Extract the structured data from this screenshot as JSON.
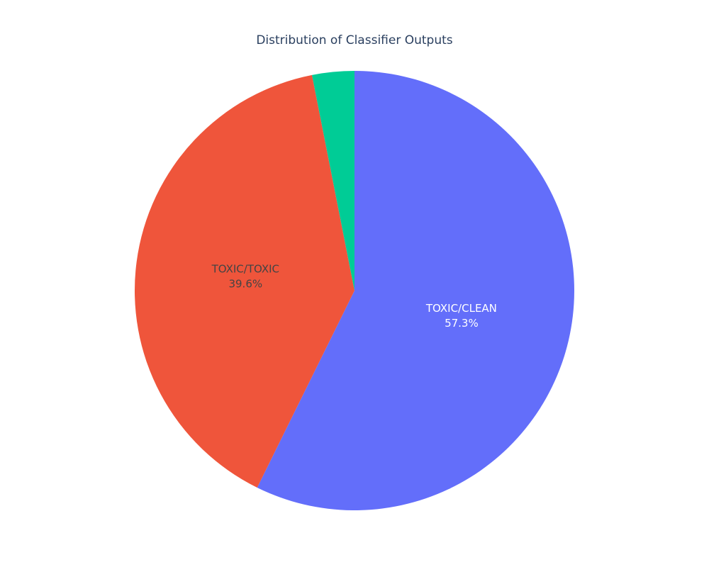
{
  "chart_data": {
    "type": "pie",
    "title": "Distribution of Classifier Outputs",
    "labels": [
      "TOXIC/CLEAN",
      "TOXIC/TOXIC",
      ""
    ],
    "values": [
      57.3,
      39.6,
      3.1
    ],
    "percent_labels": [
      "57.3%",
      "39.6%",
      ""
    ],
    "colors": [
      "#636efa",
      "#ef553b",
      "#00cc96"
    ],
    "label_colors": [
      "#ffffff",
      "#444444",
      "#444444"
    ],
    "start_angle_deg": 0,
    "direction": "clockwise",
    "legend": "none"
  }
}
